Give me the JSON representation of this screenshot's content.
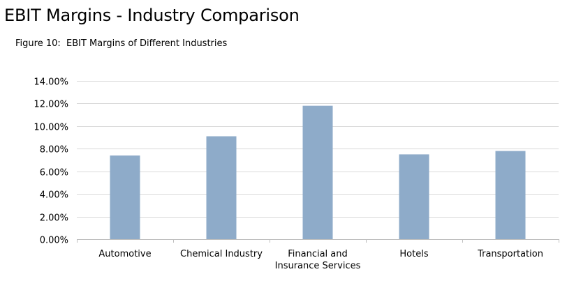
{
  "header": {
    "title": "EBIT Margins - Industry Comparison",
    "figure_caption": "Figure 10:  EBIT Margins of Different Industries"
  },
  "colors": {
    "bar": "#8eabc9",
    "gridline": "#d9d9d9",
    "axis": "#bfbfbf",
    "text": "#000000"
  },
  "chart_data": {
    "type": "bar",
    "title": "",
    "xlabel": "",
    "ylabel": "",
    "categories": [
      [
        "Automotive"
      ],
      [
        "Chemical Industry"
      ],
      [
        "Financial and",
        "Insurance Services"
      ],
      [
        "Hotels"
      ],
      [
        "Transportation"
      ]
    ],
    "series": [
      {
        "values": [
          7.4,
          9.1,
          11.8,
          7.5,
          7.8
        ]
      }
    ],
    "ylim": [
      0,
      14
    ],
    "yticks": [
      0,
      2,
      4,
      6,
      8,
      10,
      12,
      14
    ],
    "ytick_labels": [
      "0.00%",
      "2.00%",
      "4.00%",
      "6.00%",
      "8.00%",
      "10.00%",
      "12.00%",
      "14.00%"
    ],
    "grid": true,
    "legend": "none"
  }
}
